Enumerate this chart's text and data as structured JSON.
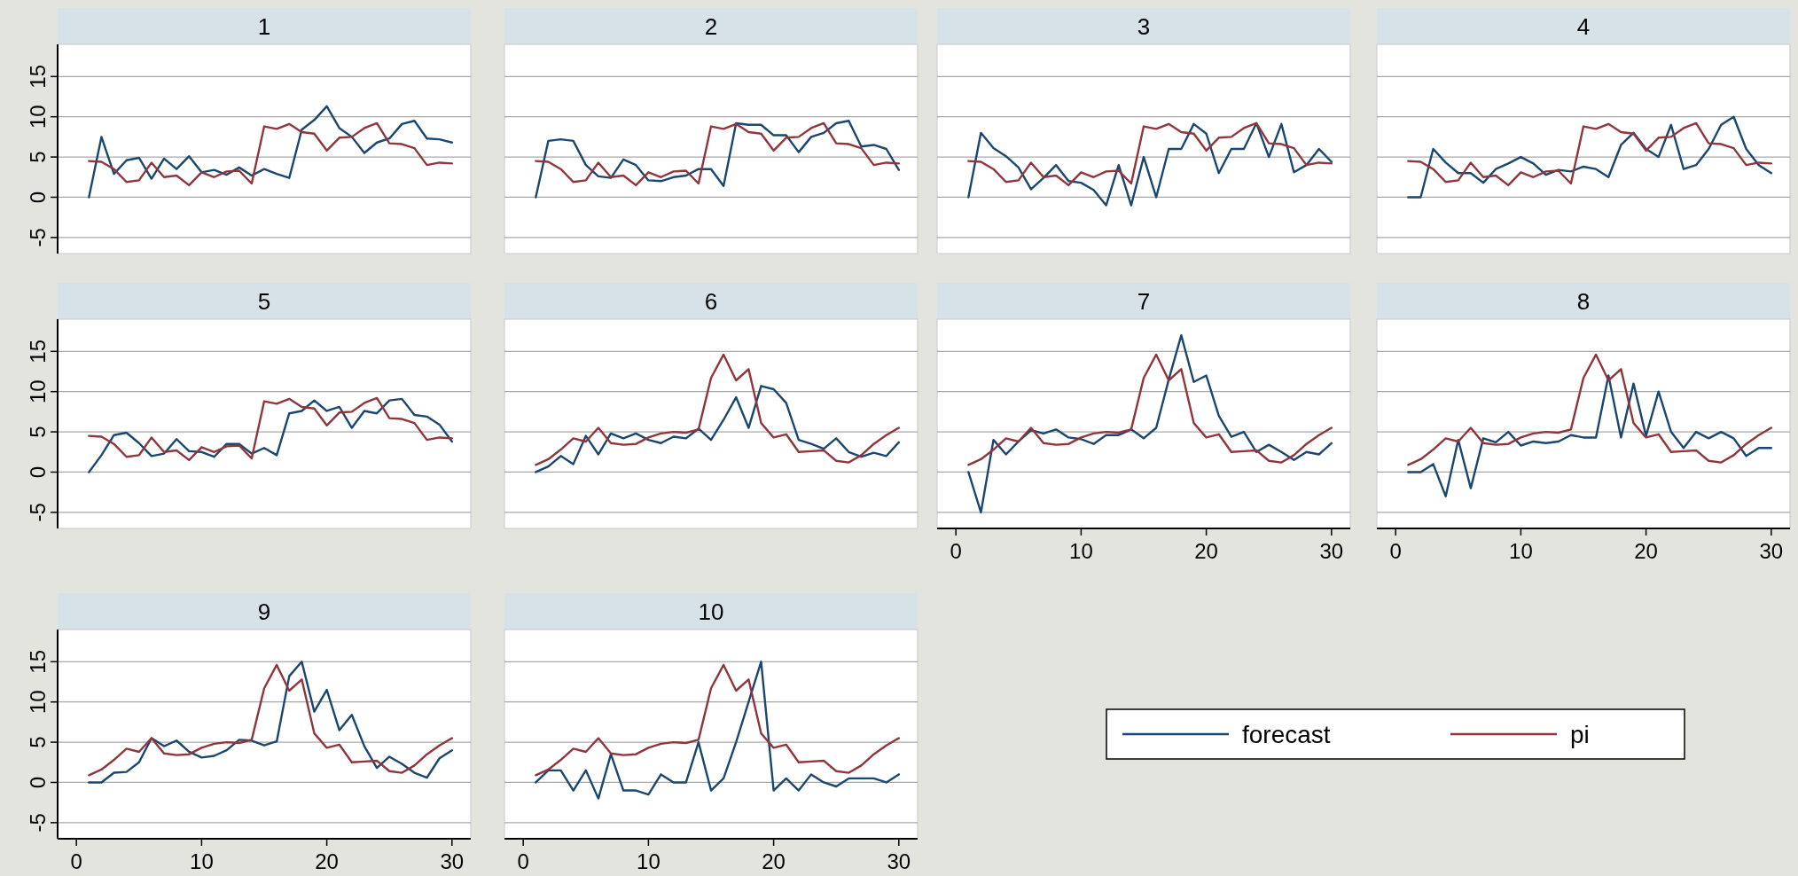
{
  "chart_data": [
    {
      "type": "line",
      "title": "1",
      "x": [
        1,
        2,
        3,
        4,
        5,
        6,
        7,
        8,
        9,
        10,
        11,
        12,
        13,
        14,
        15,
        16,
        17,
        18,
        19,
        20,
        21,
        22,
        23,
        24,
        25,
        26,
        27,
        28,
        29,
        30
      ],
      "xlim": [
        -1.5,
        31.5
      ],
      "ylim": [
        -7,
        19
      ],
      "yticks": [
        -5,
        0,
        5,
        10,
        15
      ],
      "grid": "y",
      "tick_labels": "y",
      "legend": "bottom right",
      "series": [
        {
          "name": "forecast",
          "color": "#1a476f",
          "values": [
            0,
            7.5,
            2.9,
            4.6,
            4.9,
            2.3,
            4.8,
            3.5,
            5.1,
            3.1,
            3.4,
            2.8,
            3.7,
            2.7,
            3.5,
            2.9,
            2.4,
            8.4,
            9.6,
            11.3,
            8.6,
            7.5,
            5.5,
            6.8,
            7.3,
            9.1,
            9.5,
            7.3,
            7.2,
            6.8
          ]
        },
        {
          "name": "pi",
          "color": "#90353b",
          "values": [
            4.5,
            4.4,
            3.5,
            1.9,
            2.1,
            4.3,
            2.5,
            2.7,
            1.5,
            3.1,
            2.5,
            3.2,
            3.3,
            1.7,
            8.8,
            8.5,
            9.1,
            8.1,
            7.9,
            5.8,
            7.4,
            7.5,
            8.6,
            9.2,
            6.7,
            6.6,
            6.1,
            4.0,
            4.3,
            4.2
          ]
        }
      ]
    },
    {
      "type": "line",
      "title": "2",
      "x": [
        1,
        2,
        3,
        4,
        5,
        6,
        7,
        8,
        9,
        10,
        11,
        12,
        13,
        14,
        15,
        16,
        17,
        18,
        19,
        20,
        21,
        22,
        23,
        24,
        25,
        26,
        27,
        28,
        29,
        30
      ],
      "xlim": [
        -1.5,
        31.5
      ],
      "ylim": [
        -7,
        19
      ],
      "yticks": [
        -5,
        0,
        5,
        10,
        15
      ],
      "grid": "y",
      "tick_labels": false,
      "series": [
        {
          "color": "#1a476f",
          "values": [
            0,
            7.0,
            7.2,
            7.0,
            4.0,
            2.6,
            2.4,
            4.7,
            4.0,
            2.1,
            2.0,
            2.5,
            2.7,
            3.5,
            3.5,
            1.4,
            9.2,
            9.0,
            9.0,
            7.7,
            7.7,
            5.6,
            7.5,
            8.0,
            9.2,
            9.5,
            6.3,
            6.5,
            6.0,
            3.4
          ]
        },
        {
          "color": "#90353b",
          "values": [
            4.5,
            4.4,
            3.5,
            1.9,
            2.1,
            4.3,
            2.5,
            2.7,
            1.5,
            3.1,
            2.5,
            3.2,
            3.3,
            1.7,
            8.8,
            8.5,
            9.1,
            8.1,
            7.9,
            5.8,
            7.4,
            7.5,
            8.6,
            9.2,
            6.7,
            6.6,
            6.1,
            4.0,
            4.3,
            4.2
          ]
        }
      ]
    },
    {
      "type": "line",
      "title": "3",
      "x": [
        1,
        2,
        3,
        4,
        5,
        6,
        7,
        8,
        9,
        10,
        11,
        12,
        13,
        14,
        15,
        16,
        17,
        18,
        19,
        20,
        21,
        22,
        23,
        24,
        25,
        26,
        27,
        28,
        29,
        30
      ],
      "xlim": [
        -1.5,
        31.5
      ],
      "ylim": [
        -7,
        19
      ],
      "yticks": [
        -5,
        0,
        5,
        10,
        15
      ],
      "grid": "y",
      "tick_labels": false,
      "series": [
        {
          "color": "#1a476f",
          "values": [
            0,
            8.0,
            6.1,
            5.1,
            3.7,
            1.0,
            2.4,
            4.0,
            2.0,
            1.8,
            0.9,
            -1.0,
            4.0,
            -1.0,
            5.0,
            0,
            6.0,
            6.0,
            9.1,
            7.9,
            3.0,
            6.0,
            6.0,
            9.2,
            5.0,
            9.1,
            3.1,
            4.0,
            6.0,
            4.4
          ]
        },
        {
          "color": "#90353b",
          "values": [
            4.5,
            4.4,
            3.5,
            1.9,
            2.1,
            4.3,
            2.5,
            2.7,
            1.5,
            3.1,
            2.5,
            3.2,
            3.3,
            1.7,
            8.8,
            8.5,
            9.1,
            8.1,
            7.9,
            5.8,
            7.4,
            7.5,
            8.6,
            9.2,
            6.7,
            6.6,
            6.1,
            4.0,
            4.3,
            4.2
          ]
        }
      ]
    },
    {
      "type": "line",
      "title": "4",
      "x": [
        1,
        2,
        3,
        4,
        5,
        6,
        7,
        8,
        9,
        10,
        11,
        12,
        13,
        14,
        15,
        16,
        17,
        18,
        19,
        20,
        21,
        22,
        23,
        24,
        25,
        26,
        27,
        28,
        29,
        30
      ],
      "xlim": [
        -1.5,
        31.5
      ],
      "ylim": [
        -7,
        19
      ],
      "yticks": [
        -5,
        0,
        5,
        10,
        15
      ],
      "grid": "y",
      "tick_labels": false,
      "series": [
        {
          "color": "#1a476f",
          "values": [
            0,
            0,
            6.0,
            4.3,
            3.0,
            3.0,
            1.8,
            3.5,
            4.2,
            5.0,
            4.2,
            2.8,
            3.4,
            3.2,
            3.8,
            3.5,
            2.5,
            6.5,
            8.0,
            6.0,
            5.0,
            9.0,
            3.5,
            4.0,
            6.0,
            9.0,
            10.0,
            6.0,
            4.0,
            3.0
          ]
        },
        {
          "color": "#90353b",
          "values": [
            4.5,
            4.4,
            3.5,
            1.9,
            2.1,
            4.3,
            2.5,
            2.7,
            1.5,
            3.1,
            2.5,
            3.2,
            3.3,
            1.7,
            8.8,
            8.5,
            9.1,
            8.1,
            7.9,
            5.8,
            7.4,
            7.5,
            8.6,
            9.2,
            6.7,
            6.6,
            6.1,
            4.0,
            4.3,
            4.2
          ]
        }
      ]
    },
    {
      "type": "line",
      "title": "5",
      "x": [
        1,
        2,
        3,
        4,
        5,
        6,
        7,
        8,
        9,
        10,
        11,
        12,
        13,
        14,
        15,
        16,
        17,
        18,
        19,
        20,
        21,
        22,
        23,
        24,
        25,
        26,
        27,
        28,
        29,
        30
      ],
      "xlim": [
        -1.5,
        31.5
      ],
      "ylim": [
        -7,
        19
      ],
      "yticks": [
        -5,
        0,
        5,
        10,
        15
      ],
      "grid": "y",
      "tick_labels": "y",
      "series": [
        {
          "color": "#1a476f",
          "values": [
            0,
            2.1,
            4.6,
            4.9,
            3.6,
            2.0,
            2.3,
            4.1,
            2.6,
            2.5,
            1.9,
            3.5,
            3.5,
            2.3,
            3.0,
            2.1,
            7.3,
            7.6,
            8.9,
            7.6,
            8.1,
            5.5,
            7.6,
            7.3,
            8.9,
            9.1,
            7.1,
            6.9,
            5.9,
            3.8
          ]
        },
        {
          "color": "#90353b",
          "values": [
            4.5,
            4.4,
            3.5,
            1.9,
            2.1,
            4.3,
            2.5,
            2.7,
            1.5,
            3.1,
            2.5,
            3.2,
            3.3,
            1.7,
            8.8,
            8.5,
            9.1,
            8.1,
            7.9,
            5.8,
            7.4,
            7.5,
            8.6,
            9.2,
            6.7,
            6.6,
            6.1,
            4.0,
            4.3,
            4.2
          ]
        }
      ]
    },
    {
      "type": "line",
      "title": "6",
      "x": [
        1,
        2,
        3,
        4,
        5,
        6,
        7,
        8,
        9,
        10,
        11,
        12,
        13,
        14,
        15,
        16,
        17,
        18,
        19,
        20,
        21,
        22,
        23,
        24,
        25,
        26,
        27,
        28,
        29,
        30
      ],
      "xlim": [
        -1.5,
        31.5
      ],
      "ylim": [
        -7,
        19
      ],
      "yticks": [
        -5,
        0,
        5,
        10,
        15
      ],
      "grid": "y",
      "tick_labels": false,
      "series": [
        {
          "color": "#1a476f",
          "values": [
            0,
            0.7,
            2.0,
            1.0,
            4.5,
            2.2,
            4.8,
            4.2,
            4.8,
            4.0,
            3.6,
            4.4,
            4.2,
            5.4,
            4.0,
            6.5,
            9.3,
            5.5,
            10.7,
            10.3,
            8.6,
            4.0,
            3.5,
            2.9,
            4.2,
            2.5,
            1.9,
            2.4,
            2.0,
            3.7
          ]
        },
        {
          "color": "#90353b",
          "values": [
            0.9,
            1.6,
            2.8,
            4.2,
            3.8,
            5.5,
            3.6,
            3.4,
            3.5,
            4.3,
            4.8,
            5.0,
            4.9,
            5.3,
            11.7,
            14.6,
            11.4,
            12.8,
            6.1,
            4.3,
            4.7,
            2.5,
            2.6,
            2.7,
            1.4,
            1.2,
            2.1,
            3.5,
            4.6,
            5.5
          ]
        }
      ]
    },
    {
      "type": "line",
      "title": "7",
      "x": [
        1,
        2,
        3,
        4,
        5,
        6,
        7,
        8,
        9,
        10,
        11,
        12,
        13,
        14,
        15,
        16,
        17,
        18,
        19,
        20,
        21,
        22,
        23,
        24,
        25,
        26,
        27,
        28,
        29,
        30
      ],
      "xlim": [
        -1.5,
        31.5
      ],
      "xticks": [
        0,
        10,
        20,
        30
      ],
      "ylim": [
        -7,
        19
      ],
      "yticks": [
        -5,
        0,
        5,
        10,
        15
      ],
      "grid": "y",
      "tick_labels": "x",
      "series": [
        {
          "color": "#1a476f",
          "values": [
            0,
            -5,
            4.0,
            2.2,
            3.8,
            5.2,
            4.8,
            5.3,
            4.3,
            4.1,
            3.5,
            4.6,
            4.6,
            5.3,
            4.2,
            5.5,
            11.5,
            17.0,
            11.2,
            12.0,
            7.0,
            4.4,
            5.0,
            2.5,
            3.4,
            2.5,
            1.5,
            2.5,
            2.2,
            3.6
          ]
        },
        {
          "color": "#90353b",
          "values": [
            0.9,
            1.6,
            2.8,
            4.2,
            3.8,
            5.5,
            3.6,
            3.4,
            3.5,
            4.3,
            4.8,
            5.0,
            4.9,
            5.3,
            11.7,
            14.6,
            11.4,
            12.8,
            6.1,
            4.3,
            4.7,
            2.5,
            2.6,
            2.7,
            1.4,
            1.2,
            2.1,
            3.5,
            4.6,
            5.5
          ]
        }
      ]
    },
    {
      "type": "line",
      "title": "8",
      "x": [
        1,
        2,
        3,
        4,
        5,
        6,
        7,
        8,
        9,
        10,
        11,
        12,
        13,
        14,
        15,
        16,
        17,
        18,
        19,
        20,
        21,
        22,
        23,
        24,
        25,
        26,
        27,
        28,
        29,
        30
      ],
      "xlim": [
        -1.5,
        31.5
      ],
      "xticks": [
        0,
        10,
        20,
        30
      ],
      "ylim": [
        -7,
        19
      ],
      "yticks": [
        -5,
        0,
        5,
        10,
        15
      ],
      "grid": "y",
      "tick_labels": "x",
      "series": [
        {
          "color": "#1a476f",
          "values": [
            0,
            0,
            1.0,
            -3.0,
            4.0,
            -2.0,
            4.2,
            3.7,
            5.0,
            3.3,
            3.8,
            3.6,
            3.8,
            4.6,
            4.3,
            4.3,
            12.0,
            4.3,
            11.0,
            4.5,
            10.0,
            5.0,
            3.0,
            5.0,
            4.2,
            5.0,
            4.2,
            2.0,
            3.0,
            3.0
          ]
        },
        {
          "color": "#90353b",
          "values": [
            0.9,
            1.6,
            2.8,
            4.2,
            3.8,
            5.5,
            3.6,
            3.4,
            3.5,
            4.3,
            4.8,
            5.0,
            4.9,
            5.3,
            11.7,
            14.6,
            11.4,
            12.8,
            6.1,
            4.3,
            4.7,
            2.5,
            2.6,
            2.7,
            1.4,
            1.2,
            2.1,
            3.5,
            4.6,
            5.5
          ]
        }
      ]
    },
    {
      "type": "line",
      "title": "9",
      "x": [
        1,
        2,
        3,
        4,
        5,
        6,
        7,
        8,
        9,
        10,
        11,
        12,
        13,
        14,
        15,
        16,
        17,
        18,
        19,
        20,
        21,
        22,
        23,
        24,
        25,
        26,
        27,
        28,
        29,
        30
      ],
      "xlim": [
        -1.5,
        31.5
      ],
      "xticks": [
        0,
        10,
        20,
        30
      ],
      "ylim": [
        -7,
        19
      ],
      "yticks": [
        -5,
        0,
        5,
        10,
        15
      ],
      "grid": "y",
      "series": [
        {
          "color": "#1a476f",
          "values": [
            0,
            0,
            1.2,
            1.3,
            2.5,
            5.5,
            4.5,
            5.2,
            3.8,
            3.1,
            3.3,
            4.0,
            5.3,
            5.2,
            4.6,
            5.1,
            13.2,
            15.0,
            8.8,
            11.5,
            6.5,
            8.4,
            4.5,
            1.8,
            3.2,
            2.3,
            1.2,
            0.6,
            3.0,
            4.0
          ]
        },
        {
          "color": "#90353b",
          "values": [
            0.9,
            1.6,
            2.8,
            4.2,
            3.8,
            5.5,
            3.6,
            3.4,
            3.5,
            4.3,
            4.8,
            5.0,
            4.9,
            5.3,
            11.7,
            14.6,
            11.4,
            12.8,
            6.1,
            4.3,
            4.7,
            2.5,
            2.6,
            2.7,
            1.4,
            1.2,
            2.1,
            3.5,
            4.6,
            5.5
          ]
        }
      ]
    },
    {
      "type": "line",
      "title": "10",
      "x": [
        1,
        2,
        3,
        4,
        5,
        6,
        7,
        8,
        9,
        10,
        11,
        12,
        13,
        14,
        15,
        16,
        17,
        18,
        19,
        20,
        21,
        22,
        23,
        24,
        25,
        26,
        27,
        28,
        29,
        30
      ],
      "xlim": [
        -1.5,
        31.5
      ],
      "xticks": [
        0,
        10,
        20,
        30
      ],
      "ylim": [
        -7,
        19
      ],
      "yticks": [
        -5,
        0,
        5,
        10,
        15
      ],
      "grid": "y",
      "tick_labels": "x",
      "series": [
        {
          "color": "#1a476f",
          "values": [
            0,
            1.5,
            1.5,
            -1.0,
            1.5,
            -2.0,
            3.5,
            -1.0,
            -1.0,
            -1.5,
            1.0,
            0,
            0,
            5.0,
            -1.0,
            0.5,
            5.0,
            10.0,
            15.0,
            -1.0,
            0.5,
            -1.0,
            1.0,
            0,
            -0.5,
            0.5,
            0.5,
            0.5,
            0,
            1.0
          ]
        },
        {
          "color": "#90353b",
          "values": [
            0.9,
            1.6,
            2.8,
            4.2,
            3.8,
            5.5,
            3.6,
            3.4,
            3.5,
            4.3,
            4.8,
            5.0,
            4.9,
            5.3,
            11.7,
            14.6,
            11.4,
            12.8,
            6.1,
            4.3,
            4.7,
            2.5,
            2.6,
            2.7,
            1.4,
            1.2,
            2.1,
            3.5,
            4.6,
            5.5
          ]
        }
      ]
    }
  ]
}
